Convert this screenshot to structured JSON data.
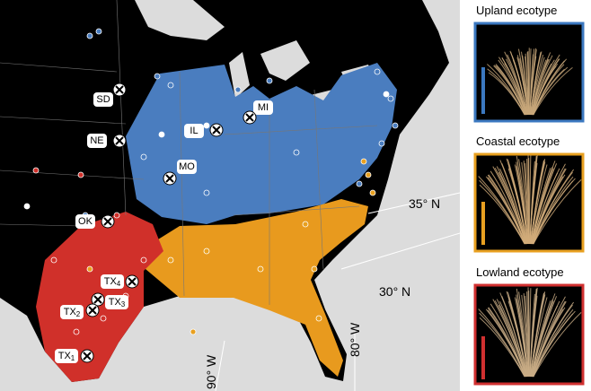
{
  "map": {
    "sites": [
      {
        "label": "SD"
      },
      {
        "label": "IL"
      },
      {
        "label": "MI"
      },
      {
        "label": "NE"
      },
      {
        "label": "MO"
      },
      {
        "label": "OK"
      },
      {
        "label": "TX",
        "subscript": "4"
      },
      {
        "label": "TX",
        "subscript": "3"
      },
      {
        "label": "TX",
        "subscript": "2"
      },
      {
        "label": "TX",
        "subscript": "1"
      }
    ],
    "graticule": [
      {
        "label": "35° N"
      },
      {
        "label": "30° N"
      },
      {
        "label": "90° W"
      },
      {
        "label": "80° W"
      }
    ]
  },
  "panels": [
    {
      "title": "Upland ecotype"
    },
    {
      "title": "Coastal ecotype"
    },
    {
      "title": "Lowland ecotype"
    }
  ]
}
